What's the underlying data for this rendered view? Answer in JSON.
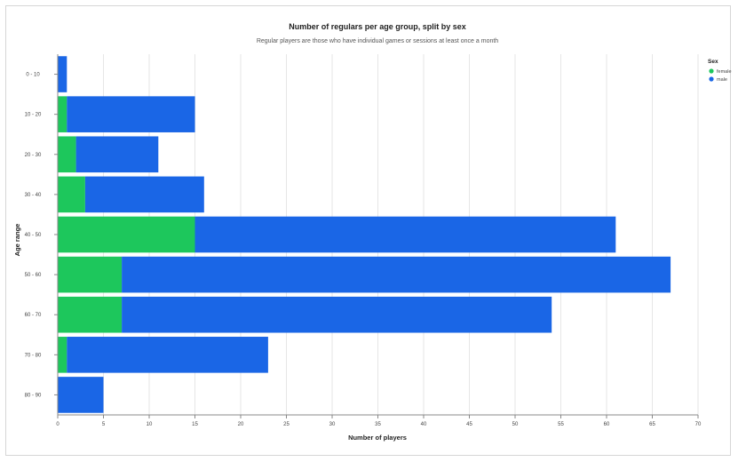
{
  "chart_data": {
    "type": "bar",
    "orientation": "horizontal",
    "stacked": true,
    "title": "Number of regulars per age group, split by sex",
    "subtitle": "Regular players are those who have individual games or sessions at least once a month",
    "xlabel": "Number of players",
    "ylabel": "Age range",
    "xlim": [
      0,
      70
    ],
    "x_ticks": [
      0,
      5,
      10,
      15,
      20,
      25,
      30,
      35,
      40,
      45,
      50,
      55,
      60,
      65,
      70
    ],
    "grid": true,
    "categories": [
      "0 - 10",
      "10 - 20",
      "20 - 30",
      "30 - 40",
      "40 - 50",
      "50 - 60",
      "60 - 70",
      "70 - 80",
      "80 - 90"
    ],
    "legend_title": "Sex",
    "legend_position": "top-right",
    "series": [
      {
        "name": "female",
        "color": "#1dc75c",
        "values": [
          0,
          1,
          2,
          3,
          15,
          7,
          7,
          1,
          0
        ]
      },
      {
        "name": "male",
        "color": "#1a66e6",
        "values": [
          1,
          14,
          9,
          13,
          46,
          60,
          47,
          22,
          5
        ]
      }
    ]
  }
}
